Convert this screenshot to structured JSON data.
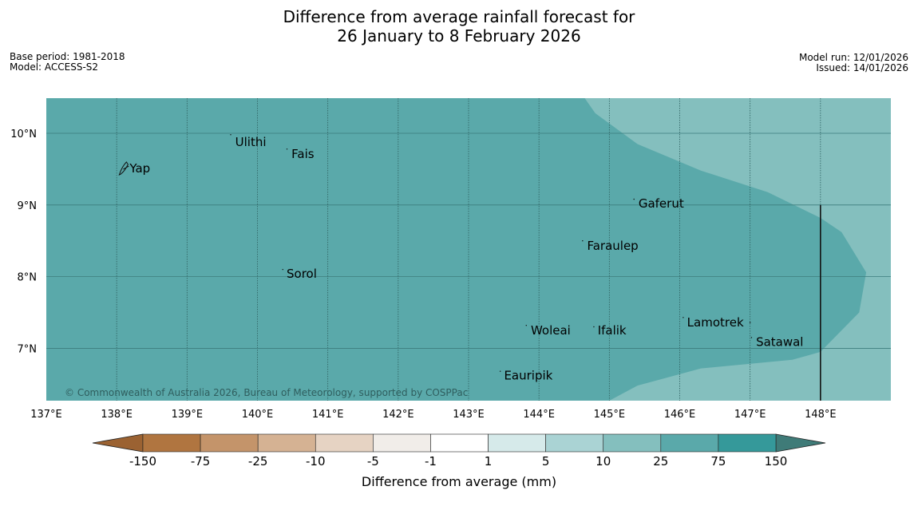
{
  "title": {
    "line1": "Difference from average rainfall forecast for",
    "line2": "26 January to 8 February 2026"
  },
  "meta_left": {
    "base_period": "Base period: 1981-2018",
    "model": "Model: ACCESS-S2"
  },
  "meta_right": {
    "model_run": "Model run: 12/01/2026",
    "issued": "Issued: 14/01/2026"
  },
  "map": {
    "lon_range": [
      137,
      149
    ],
    "lat_range": [
      6.27,
      10.49
    ],
    "lon_ticks": [
      {
        "value": 137,
        "label": "137°E"
      },
      {
        "value": 138,
        "label": "138°E"
      },
      {
        "value": 139,
        "label": "139°E"
      },
      {
        "value": 140,
        "label": "140°E"
      },
      {
        "value": 141,
        "label": "141°E"
      },
      {
        "value": 142,
        "label": "142°E"
      },
      {
        "value": 143,
        "label": "143°E"
      },
      {
        "value": 144,
        "label": "144°E"
      },
      {
        "value": 145,
        "label": "145°E"
      },
      {
        "value": 146,
        "label": "146°E"
      },
      {
        "value": 147,
        "label": "147°E"
      },
      {
        "value": 148,
        "label": "148°E"
      }
    ],
    "lat_ticks": [
      {
        "value": 10,
        "label": "10°N"
      },
      {
        "value": 9,
        "label": "9°N"
      },
      {
        "value": 8,
        "label": "8°N"
      },
      {
        "value": 7,
        "label": "7°N"
      }
    ],
    "background_color": "#84bfbe",
    "main_region_color": "#5aa9aa",
    "main_region_category": "25 to 75",
    "outer_region_category": "10 to 25",
    "main_region_boundary": [
      [
        144.65,
        10.49
      ],
      [
        144.8,
        10.28
      ],
      [
        145.4,
        9.85
      ],
      [
        146.3,
        9.48
      ],
      [
        147.25,
        9.18
      ],
      [
        148.0,
        8.82
      ],
      [
        148.3,
        8.62
      ],
      [
        148.65,
        8.06
      ],
      [
        148.55,
        7.5
      ],
      [
        148.0,
        6.95
      ],
      [
        147.6,
        6.84
      ],
      [
        146.3,
        6.72
      ],
      [
        145.4,
        6.48
      ],
      [
        145.0,
        6.27
      ]
    ],
    "border_line": {
      "lon": 148.0,
      "lat_from": 6.27,
      "lat_to": 9.0
    },
    "places": [
      {
        "name": "Ulithi",
        "lon": 139.65,
        "lat": 9.88
      },
      {
        "name": "Fais",
        "lon": 140.45,
        "lat": 9.71
      },
      {
        "name": "Yap",
        "lon": 138.15,
        "lat": 9.51
      },
      {
        "name": "Gaferut",
        "lon": 145.38,
        "lat": 9.02
      },
      {
        "name": "Faraulep",
        "lon": 144.65,
        "lat": 8.43
      },
      {
        "name": "Sorol",
        "lon": 140.38,
        "lat": 8.04
      },
      {
        "name": "Lamotrek",
        "lon": 146.07,
        "lat": 7.36
      },
      {
        "name": "Woleai",
        "lon": 143.85,
        "lat": 7.25
      },
      {
        "name": "Ifalik",
        "lon": 144.8,
        "lat": 7.25
      },
      {
        "name": "Satawal",
        "lon": 147.05,
        "lat": 7.09
      },
      {
        "name": "Eauripik",
        "lon": 143.47,
        "lat": 6.62
      }
    ],
    "copyright": "© Commonwealth of Australia 2026, Bureau of Meteorology, supported by COSPPac"
  },
  "colorbar": {
    "title": "Difference from average (mm)",
    "under_color": "#9b6232",
    "over_color": "#3f7b78",
    "bins": [
      {
        "color": "#b07540",
        "from": "-150",
        "to": "-75"
      },
      {
        "color": "#c4946a",
        "from": "-75",
        "to": "-25"
      },
      {
        "color": "#d5b293",
        "from": "-25",
        "to": "-10"
      },
      {
        "color": "#e6d3c3",
        "from": "-10",
        "to": "-5"
      },
      {
        "color": "#f1ede9",
        "from": "-5",
        "to": "-1"
      },
      {
        "color": "#ffffff",
        "from": "-1",
        "to": "1"
      },
      {
        "color": "#d6eaea",
        "from": "1",
        "to": "5"
      },
      {
        "color": "#aad3d4",
        "from": "5",
        "to": "10"
      },
      {
        "color": "#84bfbe",
        "from": "10",
        "to": "25"
      },
      {
        "color": "#5aa9aa",
        "from": "25",
        "to": "75"
      },
      {
        "color": "#35999a",
        "from": "75",
        "to": "150"
      }
    ],
    "tick_labels": [
      "-150",
      "-75",
      "-25",
      "-10",
      "-5",
      "-1",
      "1",
      "5",
      "10",
      "25",
      "75",
      "150"
    ]
  }
}
